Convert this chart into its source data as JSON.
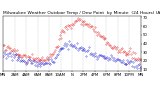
{
  "title": "Milwaukee Weather Outdoor Temp / Dew Point  by Minute  (24 Hours) (Alternate)",
  "title_fontsize": 3.2,
  "bg_color": "#ffffff",
  "plot_bg_color": "#ffffff",
  "grid_color": "#888888",
  "temp_color": "#dd0000",
  "dew_color": "#0000cc",
  "ylim": [
    8,
    72
  ],
  "xlim": [
    0,
    1440
  ],
  "yticks": [
    10,
    20,
    30,
    40,
    50,
    60,
    70
  ],
  "ytick_labels": [
    "10",
    "20",
    "30",
    "40",
    "50",
    "60",
    "70"
  ],
  "xtick_positions": [
    0,
    120,
    240,
    360,
    480,
    600,
    720,
    840,
    960,
    1080,
    1200,
    1320,
    1440
  ],
  "xtick_labels": [
    "MN",
    "2AM",
    "4AM",
    "6AM",
    "8AM",
    "10AM",
    "N",
    "2PM",
    "4PM",
    "6PM",
    "8PM",
    "10PM",
    "MN"
  ],
  "temp_base": [
    [
      0,
      38
    ],
    [
      60,
      34
    ],
    [
      120,
      31
    ],
    [
      180,
      28
    ],
    [
      240,
      26
    ],
    [
      300,
      24
    ],
    [
      360,
      22
    ],
    [
      420,
      21
    ],
    [
      480,
      24
    ],
    [
      540,
      32
    ],
    [
      600,
      50
    ],
    [
      660,
      58
    ],
    [
      720,
      64
    ],
    [
      780,
      67
    ],
    [
      840,
      65
    ],
    [
      900,
      60
    ],
    [
      960,
      54
    ],
    [
      1020,
      48
    ],
    [
      1080,
      42
    ],
    [
      1140,
      37
    ],
    [
      1200,
      34
    ],
    [
      1260,
      31
    ],
    [
      1320,
      28
    ],
    [
      1380,
      25
    ],
    [
      1440,
      22
    ]
  ],
  "dew_base": [
    [
      0,
      28
    ],
    [
      60,
      26
    ],
    [
      120,
      24
    ],
    [
      180,
      22
    ],
    [
      240,
      20
    ],
    [
      300,
      19
    ],
    [
      360,
      17
    ],
    [
      420,
      17
    ],
    [
      480,
      18
    ],
    [
      540,
      22
    ],
    [
      600,
      33
    ],
    [
      660,
      37
    ],
    [
      720,
      38
    ],
    [
      780,
      37
    ],
    [
      840,
      34
    ],
    [
      900,
      31
    ],
    [
      960,
      28
    ],
    [
      1020,
      26
    ],
    [
      1080,
      24
    ],
    [
      1140,
      22
    ],
    [
      1200,
      21
    ],
    [
      1260,
      19
    ],
    [
      1320,
      18
    ],
    [
      1380,
      16
    ],
    [
      1440,
      14
    ]
  ],
  "n_points": 1440,
  "temp_noise_std": 2.5,
  "dew_noise_std": 2.0,
  "marker_size": 0.5,
  "marker_alpha": 0.9
}
